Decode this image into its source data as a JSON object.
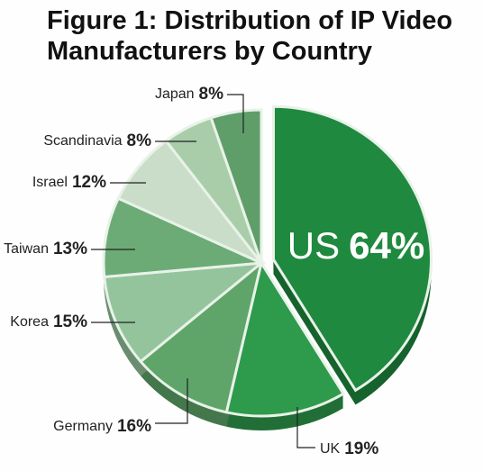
{
  "chart_data": {
    "type": "pie",
    "title": "Figure 1: Distribution of IP Video Manufacturers by Country",
    "categories": [
      "US",
      "UK",
      "Germany",
      "Korea",
      "Taiwan",
      "Israel",
      "Scandinavia",
      "Japan"
    ],
    "values": [
      64,
      19,
      16,
      15,
      13,
      12,
      8,
      8
    ],
    "value_labels": [
      "64%",
      "19%",
      "16%",
      "15%",
      "13%",
      "12%",
      "8%",
      "8%"
    ],
    "colors": [
      "#1f8a3f",
      "#2e9a4c",
      "#5fa56a",
      "#94c49b",
      "#6cab76",
      "#c9ddc9",
      "#a9cda9",
      "#5f9e69"
    ]
  }
}
